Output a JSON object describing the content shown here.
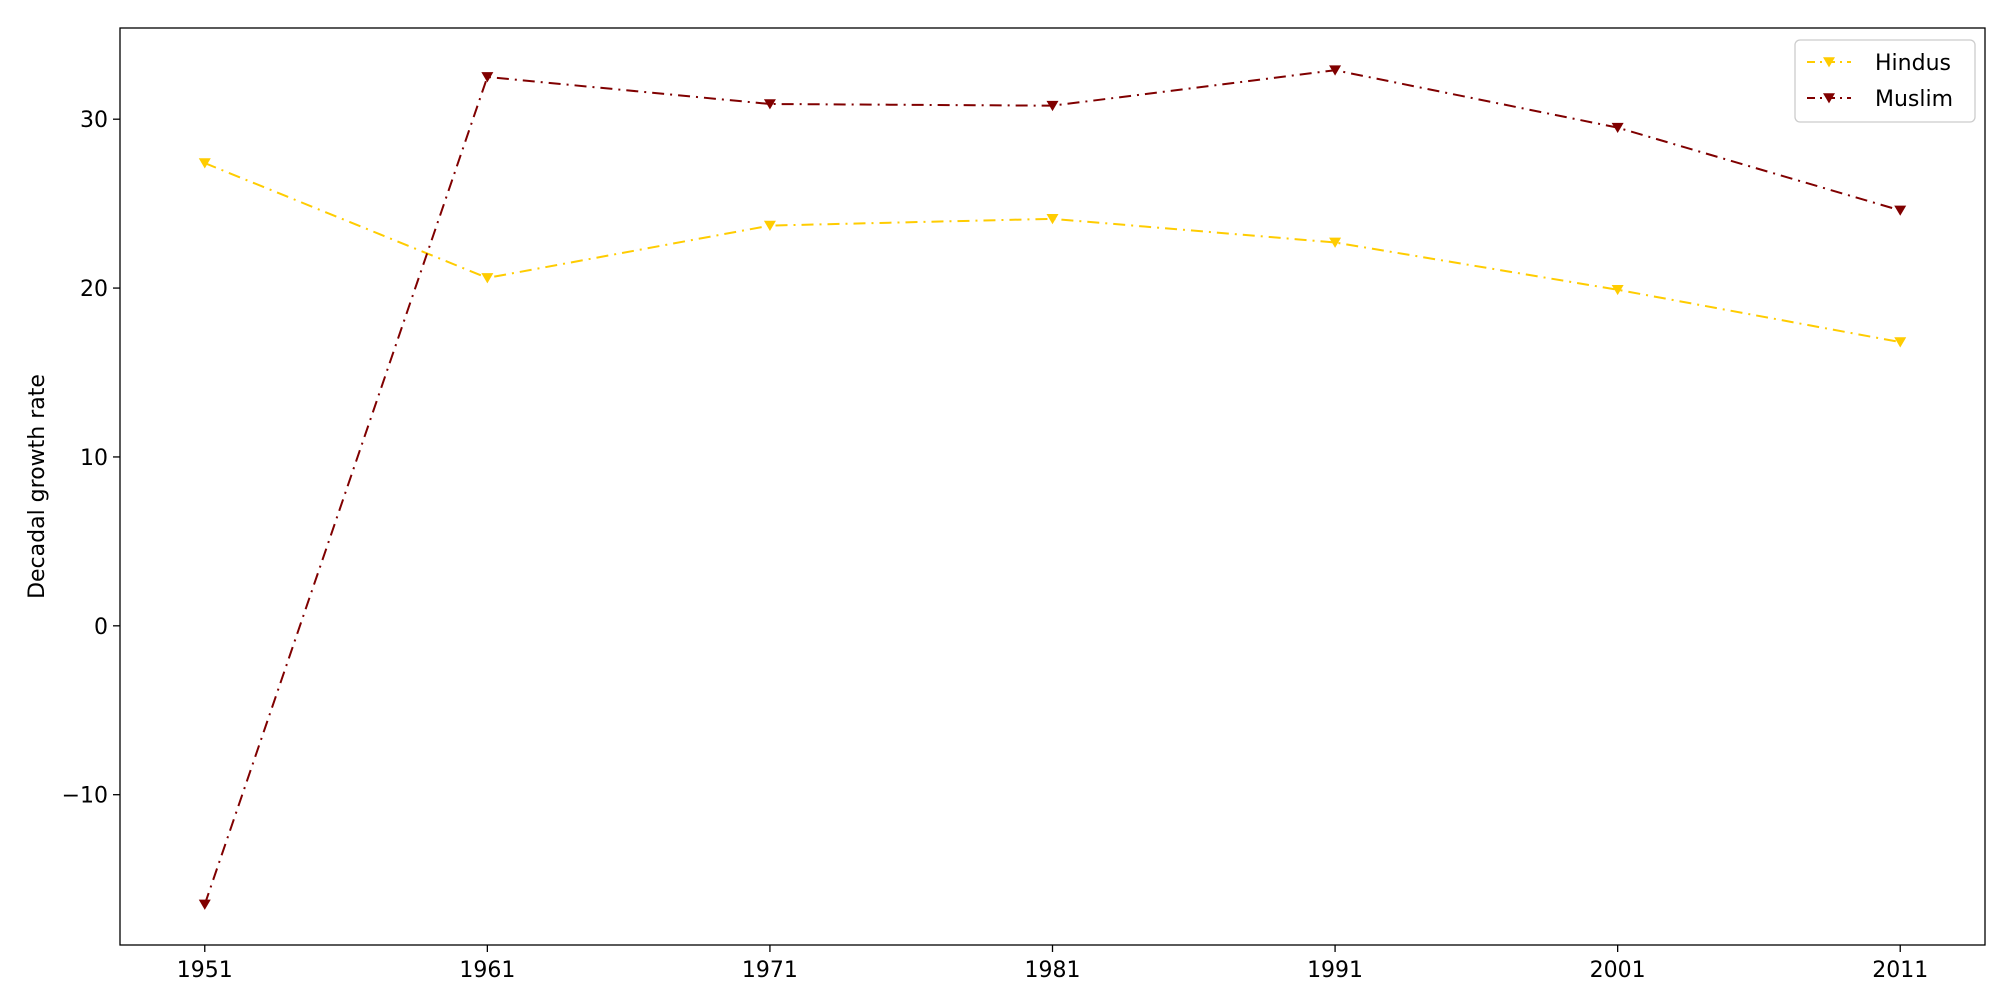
{
  "chart_data": {
    "type": "line",
    "title": "",
    "xlabel": "",
    "ylabel": "Decadal growth rate",
    "x": [
      1951,
      1961,
      1971,
      1981,
      1991,
      2001,
      2011
    ],
    "x_tick_labels": [
      "1951",
      "1961",
      "1971",
      "1981",
      "1991",
      "2001",
      "2011"
    ],
    "y_ticks": [
      -10,
      0,
      10,
      20,
      30
    ],
    "y_tick_labels": [
      "−10",
      "0",
      "10",
      "20",
      "30"
    ],
    "xlim": [
      1948,
      2014
    ],
    "ylim": [
      -18.9,
      35.4
    ],
    "grid": false,
    "legend_position": "top-right",
    "series": [
      {
        "name": "Hindus",
        "color": "#ffcc00",
        "marker": "triangle-down",
        "line_style": "dash-dot",
        "values": [
          27.4,
          20.6,
          23.7,
          24.1,
          22.7,
          19.9,
          16.8
        ]
      },
      {
        "name": "Muslim",
        "color": "#800000",
        "marker": "triangle-down",
        "line_style": "dash-dot",
        "values": [
          -16.5,
          32.5,
          30.9,
          30.8,
          32.9,
          29.5,
          24.6
        ]
      }
    ]
  }
}
